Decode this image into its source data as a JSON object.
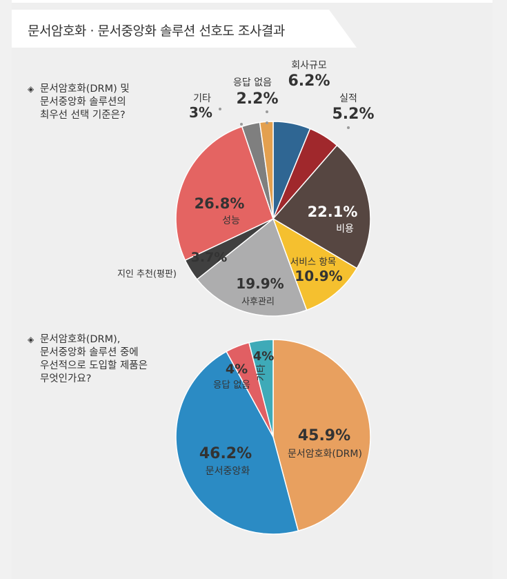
{
  "header": {
    "title": "문서암호화 · 문서중앙화 솔루션 선호도 조사결과"
  },
  "question1": {
    "lines": [
      "문서암호화(DRM) 및",
      "문서중앙화 솔루션의",
      "최우선 선택 기준은?"
    ]
  },
  "question2": {
    "lines": [
      "문서암호화(DRM),",
      "문서중앙화 솔루션 중에",
      "우선적으로 도입할 제품은",
      "무엇인가요?"
    ]
  },
  "chart_data": [
    {
      "type": "pie",
      "title": "",
      "unit": "%",
      "slices": [
        {
          "label": "회사규모",
          "value": 6.2,
          "color": "#2f6693"
        },
        {
          "label": "실적",
          "value": 5.2,
          "color": "#a0282c"
        },
        {
          "label": "비용",
          "value": 22.1,
          "color": "#564641"
        },
        {
          "label": "서비스 항목",
          "value": 10.9,
          "color": "#f5c02f"
        },
        {
          "label": "사후관리",
          "value": 19.9,
          "color": "#adadae"
        },
        {
          "label": "지인 추천(평판)",
          "value": 3.7,
          "color": "#404040"
        },
        {
          "label": "성능",
          "value": 26.8,
          "color": "#e46462"
        },
        {
          "label": "기타",
          "value": 3,
          "color": "#7f7f7f"
        },
        {
          "label": "응답 없음",
          "value": 2.2,
          "color": "#e3a04f"
        }
      ]
    },
    {
      "type": "pie",
      "title": "",
      "unit": "%",
      "slices": [
        {
          "label": "문서암호화(DRM)",
          "value": 45.9,
          "color": "#e8a05f"
        },
        {
          "label": "문서중앙화",
          "value": 46.2,
          "color": "#2b8bc4"
        },
        {
          "label": "응답 없음",
          "value": 4,
          "color": "#e15f63"
        },
        {
          "label": "기타",
          "value": 4,
          "color": "#3eaab8"
        }
      ]
    }
  ]
}
